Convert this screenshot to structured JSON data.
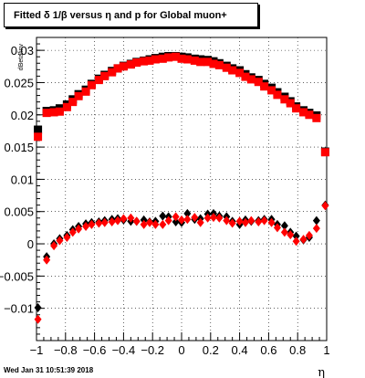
{
  "title": "Fitted δ 1/β versus η and p for Global muon+",
  "datestamp": "Wed Jan 31 10:51:39 2018",
  "chart_data": {
    "type": "scatter",
    "xlabel": "η",
    "ylabel": "dBeta/inv",
    "xlim": [
      -1,
      1
    ],
    "ylim": [
      -0.015,
      0.032
    ],
    "grid": true,
    "x_ticks": [
      -1,
      -0.8,
      -0.6,
      -0.4,
      -0.2,
      0,
      0.2,
      0.4,
      0.6,
      0.8,
      1
    ],
    "x_tick_labels": [
      "−1",
      "−0.8",
      "−0.6",
      "−0.4",
      "−0.2",
      "0",
      "0.2",
      "0.4",
      "0.6",
      "0.8",
      "1"
    ],
    "y_ticks": [
      -0.01,
      -0.005,
      0,
      0.005,
      0.01,
      0.015,
      0.02,
      0.025,
      0.03
    ],
    "y_tick_labels": [
      "−0.01",
      "−0.005",
      "0",
      "0.005",
      "0.01",
      "0.015",
      "0.02",
      "0.025",
      "0.03"
    ],
    "series": [
      {
        "marker": "square",
        "color": "#000000",
        "x": [
          -0.99,
          -0.93,
          -0.88,
          -0.84,
          -0.79,
          -0.75,
          -0.71,
          -0.66,
          -0.62,
          -0.57,
          -0.53,
          -0.48,
          -0.44,
          -0.4,
          -0.35,
          -0.31,
          -0.26,
          -0.22,
          -0.18,
          -0.13,
          -0.09,
          -0.04,
          0.0,
          0.04,
          0.09,
          0.13,
          0.18,
          0.22,
          0.26,
          0.31,
          0.35,
          0.4,
          0.44,
          0.48,
          0.53,
          0.57,
          0.62,
          0.66,
          0.71,
          0.75,
          0.79,
          0.84,
          0.88,
          0.93,
          0.99
        ],
        "y": [
          0.0177,
          0.0206,
          0.0207,
          0.021,
          0.0216,
          0.0224,
          0.0232,
          0.0239,
          0.0248,
          0.0256,
          0.0262,
          0.0268,
          0.0272,
          0.0276,
          0.0279,
          0.0282,
          0.0284,
          0.0286,
          0.0288,
          0.029,
          0.0291,
          0.0291,
          0.029,
          0.0289,
          0.0287,
          0.0286,
          0.0285,
          0.0283,
          0.028,
          0.0276,
          0.0272,
          0.0269,
          0.0263,
          0.0258,
          0.0254,
          0.0248,
          0.0242,
          0.0235,
          0.0228,
          0.0221,
          0.0213,
          0.0207,
          0.0203,
          0.0199,
          0.0143
        ]
      },
      {
        "marker": "square",
        "color": "#ff0000",
        "x": [
          -0.99,
          -0.93,
          -0.88,
          -0.84,
          -0.79,
          -0.75,
          -0.71,
          -0.66,
          -0.62,
          -0.57,
          -0.53,
          -0.48,
          -0.44,
          -0.4,
          -0.35,
          -0.31,
          -0.26,
          -0.22,
          -0.18,
          -0.13,
          -0.09,
          -0.04,
          0.0,
          0.04,
          0.09,
          0.13,
          0.18,
          0.22,
          0.26,
          0.31,
          0.35,
          0.4,
          0.44,
          0.48,
          0.53,
          0.57,
          0.62,
          0.66,
          0.71,
          0.75,
          0.79,
          0.84,
          0.88,
          0.93,
          0.99
        ],
        "y": [
          0.0166,
          0.0203,
          0.0204,
          0.0205,
          0.0212,
          0.022,
          0.0229,
          0.0236,
          0.0246,
          0.0254,
          0.026,
          0.0266,
          0.0272,
          0.0275,
          0.0278,
          0.0281,
          0.0283,
          0.0284,
          0.0286,
          0.0287,
          0.0289,
          0.029,
          0.0287,
          0.0286,
          0.0284,
          0.0282,
          0.0282,
          0.0279,
          0.0277,
          0.0273,
          0.0269,
          0.0265,
          0.0259,
          0.0255,
          0.0251,
          0.0244,
          0.0238,
          0.0231,
          0.0224,
          0.0218,
          0.021,
          0.0204,
          0.02,
          0.0195,
          0.0142
        ]
      },
      {
        "marker": "diamond",
        "color": "#000000",
        "x": [
          -0.99,
          -0.93,
          -0.88,
          -0.84,
          -0.79,
          -0.75,
          -0.71,
          -0.66,
          -0.62,
          -0.57,
          -0.53,
          -0.48,
          -0.44,
          -0.4,
          -0.35,
          -0.31,
          -0.26,
          -0.22,
          -0.18,
          -0.13,
          -0.09,
          -0.04,
          0.0,
          0.04,
          0.09,
          0.13,
          0.18,
          0.22,
          0.26,
          0.31,
          0.35,
          0.4,
          0.44,
          0.48,
          0.53,
          0.57,
          0.62,
          0.66,
          0.71,
          0.75,
          0.79,
          0.84,
          0.88,
          0.93,
          0.99
        ],
        "y": [
          -0.0099,
          -0.002,
          0.0,
          0.0008,
          0.0013,
          0.0022,
          0.0027,
          0.0031,
          0.0033,
          0.0034,
          0.0036,
          0.0038,
          0.0039,
          0.0037,
          0.0035,
          0.0035,
          0.0037,
          0.0034,
          0.0035,
          0.0043,
          0.0042,
          0.0034,
          0.0033,
          0.0047,
          0.0038,
          0.0039,
          0.0046,
          0.0047,
          0.0043,
          0.0042,
          0.0035,
          0.003,
          0.0037,
          0.0035,
          0.0036,
          0.0038,
          0.0038,
          0.003,
          0.0028,
          0.0018,
          0.0012,
          0.0006,
          0.001,
          0.0036,
          0.006
        ]
      },
      {
        "marker": "diamond",
        "color": "#ff0000",
        "x": [
          -0.99,
          -0.93,
          -0.88,
          -0.84,
          -0.79,
          -0.75,
          -0.71,
          -0.66,
          -0.62,
          -0.57,
          -0.53,
          -0.48,
          -0.44,
          -0.4,
          -0.35,
          -0.31,
          -0.26,
          -0.22,
          -0.18,
          -0.13,
          -0.09,
          -0.04,
          0.0,
          0.04,
          0.09,
          0.13,
          0.18,
          0.22,
          0.26,
          0.31,
          0.35,
          0.4,
          0.44,
          0.48,
          0.53,
          0.57,
          0.62,
          0.66,
          0.71,
          0.75,
          0.79,
          0.84,
          0.88,
          0.93,
          0.99
        ],
        "y": [
          -0.0117,
          -0.0025,
          -0.0003,
          0.0005,
          0.001,
          0.0018,
          0.0023,
          0.0027,
          0.003,
          0.0032,
          0.0033,
          0.0034,
          0.0036,
          0.0039,
          0.004,
          0.0035,
          0.003,
          0.0033,
          0.003,
          0.003,
          0.0036,
          0.0042,
          0.0037,
          0.0038,
          0.0041,
          0.0033,
          0.004,
          0.0041,
          0.004,
          0.0036,
          0.0032,
          0.0035,
          0.0033,
          0.0036,
          0.0034,
          0.0036,
          0.0033,
          0.0025,
          0.0018,
          0.0014,
          0.0004,
          0.0007,
          0.0013,
          0.0024,
          0.0059
        ]
      }
    ]
  }
}
